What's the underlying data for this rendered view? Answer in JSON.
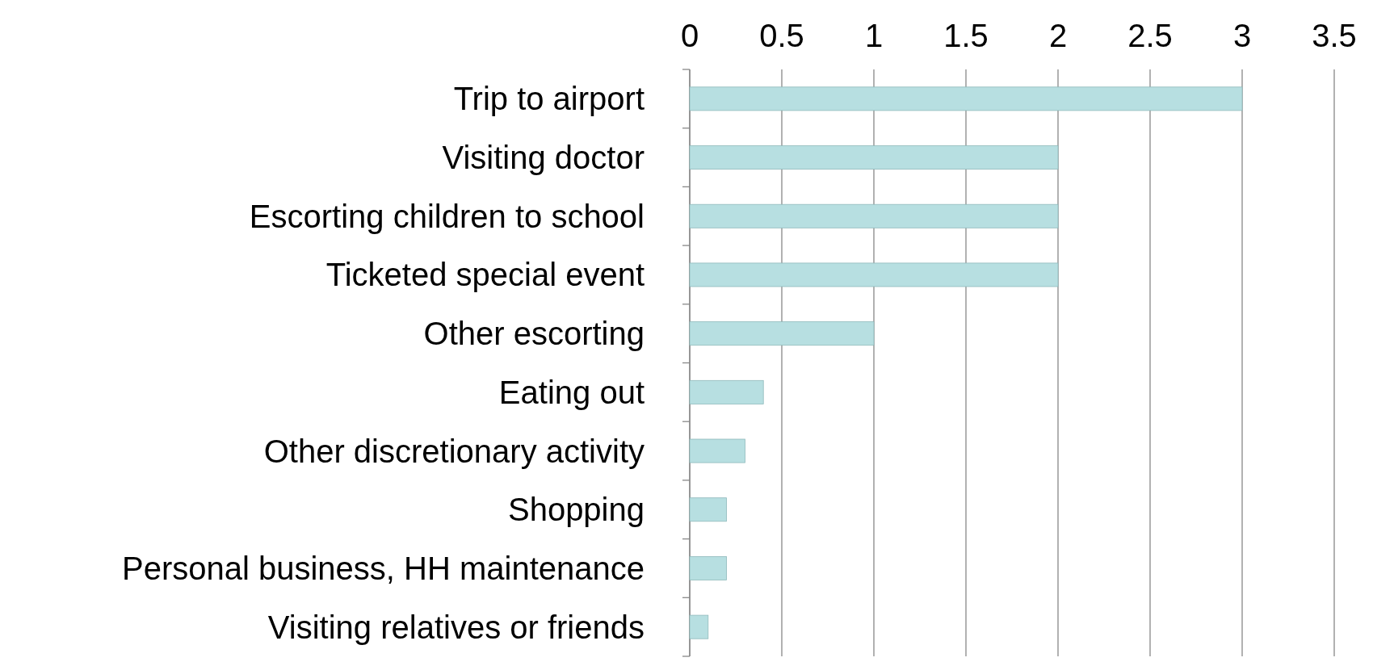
{
  "chart_data": {
    "type": "bar",
    "orientation": "horizontal",
    "categories": [
      "Trip to airport",
      "Visiting doctor",
      "Escorting children to school",
      "Ticketed special event",
      "Other escorting",
      "Eating out",
      "Other discretionary activity",
      "Shopping",
      "Personal business, HH maintenance",
      "Visiting relatives or friends"
    ],
    "values": [
      3,
      2,
      2,
      2,
      1,
      0.4,
      0.3,
      0.2,
      0.2,
      0.1
    ],
    "color": "#b7dfe1",
    "xlim": [
      0,
      3.5
    ],
    "xticks": [
      0,
      0.5,
      1,
      1.5,
      2,
      2.5,
      3,
      3.5
    ],
    "grid": "x"
  }
}
